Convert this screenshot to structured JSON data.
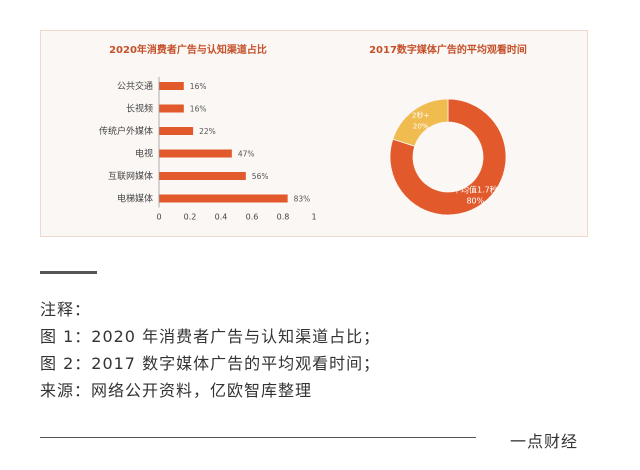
{
  "colors": {
    "bar": "#e2592b",
    "donut_main": "#e2592b",
    "donut_minor": "#f0bb4f",
    "title": "#c4512a"
  },
  "chart_data": [
    {
      "type": "bar",
      "orientation": "horizontal",
      "title": "2020年消费者广告与认知渠道占比",
      "categories": [
        "公共交通",
        "长视频",
        "传统户外媒体",
        "电视",
        "互联网媒体",
        "电梯媒体"
      ],
      "values": [
        0.16,
        0.16,
        0.22,
        0.47,
        0.56,
        0.83
      ],
      "value_labels": [
        "16%",
        "16%",
        "22%",
        "47%",
        "56%",
        "83%"
      ],
      "xlim": [
        0,
        1
      ],
      "xticks": [
        "0",
        "0.2",
        "0.4",
        "0.6",
        "0.8",
        "1"
      ],
      "grid": false
    },
    {
      "type": "pie",
      "style": "donut",
      "title": "2017数字媒体广告的平均观看时间",
      "slices": [
        {
          "label": "平均值1.7秒",
          "percent_label": "80%",
          "value": 80
        },
        {
          "label": "2秒+",
          "percent_label": "20%",
          "value": 20
        }
      ]
    }
  ],
  "notes": {
    "heading": "注释：",
    "lines": [
      "图 1：2020 年消费者广告与认知渠道占比；",
      "图 2：2017 数字媒体广告的平均观看时间；",
      "来源：网络公开资料，亿欧智库整理"
    ]
  },
  "brand": "一点财经"
}
